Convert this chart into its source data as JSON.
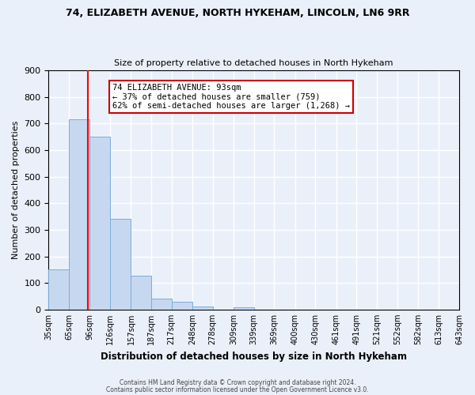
{
  "title1": "74, ELIZABETH AVENUE, NORTH HYKEHAM, LINCOLN, LN6 9RR",
  "title2": "Size of property relative to detached houses in North Hykeham",
  "xlabel": "Distribution of detached houses by size in North Hykeham",
  "ylabel": "Number of detached properties",
  "bin_labels": [
    "35sqm",
    "65sqm",
    "96sqm",
    "126sqm",
    "157sqm",
    "187sqm",
    "217sqm",
    "248sqm",
    "278sqm",
    "309sqm",
    "339sqm",
    "369sqm",
    "400sqm",
    "430sqm",
    "461sqm",
    "491sqm",
    "521sqm",
    "552sqm",
    "582sqm",
    "613sqm",
    "643sqm"
  ],
  "bar_heights": [
    152,
    715,
    650,
    340,
    128,
    40,
    30,
    10,
    0,
    8,
    0,
    0,
    0,
    0,
    0,
    0,
    0,
    0,
    0,
    0
  ],
  "bin_edges": [
    35,
    65,
    96,
    126,
    157,
    187,
    217,
    248,
    278,
    309,
    339,
    369,
    400,
    430,
    461,
    491,
    521,
    552,
    582,
    613,
    643
  ],
  "bar_color": "#c5d8f0",
  "bar_edge_color": "#7aadda",
  "red_line_x": 93,
  "annotation_text": "74 ELIZABETH AVENUE: 93sqm\n← 37% of detached houses are smaller (759)\n62% of semi-detached houses are larger (1,268) →",
  "annotation_box_color": "#ffffff",
  "annotation_box_edge": "#cc0000",
  "ylim": [
    0,
    900
  ],
  "yticks": [
    0,
    100,
    200,
    300,
    400,
    500,
    600,
    700,
    800,
    900
  ],
  "bg_color": "#eaf0f9",
  "grid_color": "#ffffff",
  "footer1": "Contains HM Land Registry data © Crown copyright and database right 2024.",
  "footer2": "Contains public sector information licensed under the Open Government Licence v3.0."
}
